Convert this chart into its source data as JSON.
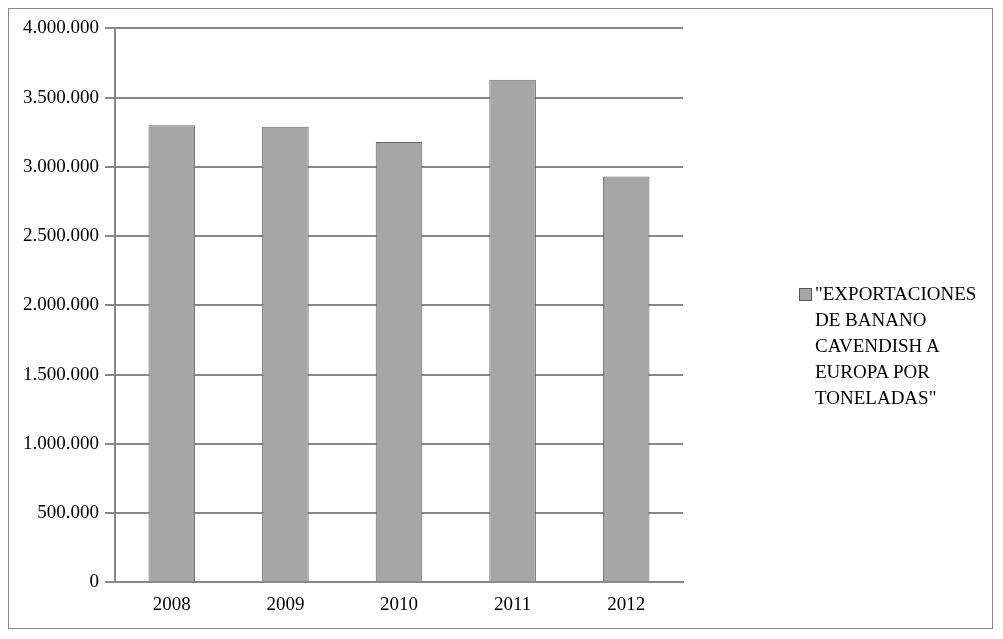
{
  "chart_data": {
    "type": "bar",
    "categories": [
      "2008",
      "2009",
      "2010",
      "2011",
      "2012"
    ],
    "series": [
      {
        "name": "\"EXPORTACIONES DE BANANO CAVENDISH A EUROPA POR TONELADAS\"",
        "color": "#a6a6a6",
        "values": [
          3300000,
          3290000,
          3180000,
          3630000,
          2930000
        ]
      }
    ],
    "ylim": [
      0,
      4000000
    ],
    "yticks": [
      {
        "value": 0,
        "label": "0"
      },
      {
        "value": 500000,
        "label": "500.000"
      },
      {
        "value": 1000000,
        "label": "1.000.000"
      },
      {
        "value": 1500000,
        "label": "1.500.000"
      },
      {
        "value": 2000000,
        "label": "2.000.000"
      },
      {
        "value": 2500000,
        "label": "2.500.000"
      },
      {
        "value": 3000000,
        "label": "3.000.000"
      },
      {
        "value": 3500000,
        "label": "3.500.000"
      },
      {
        "value": 4000000,
        "label": "4.000.000"
      }
    ],
    "grid": "y",
    "legend": "right"
  }
}
